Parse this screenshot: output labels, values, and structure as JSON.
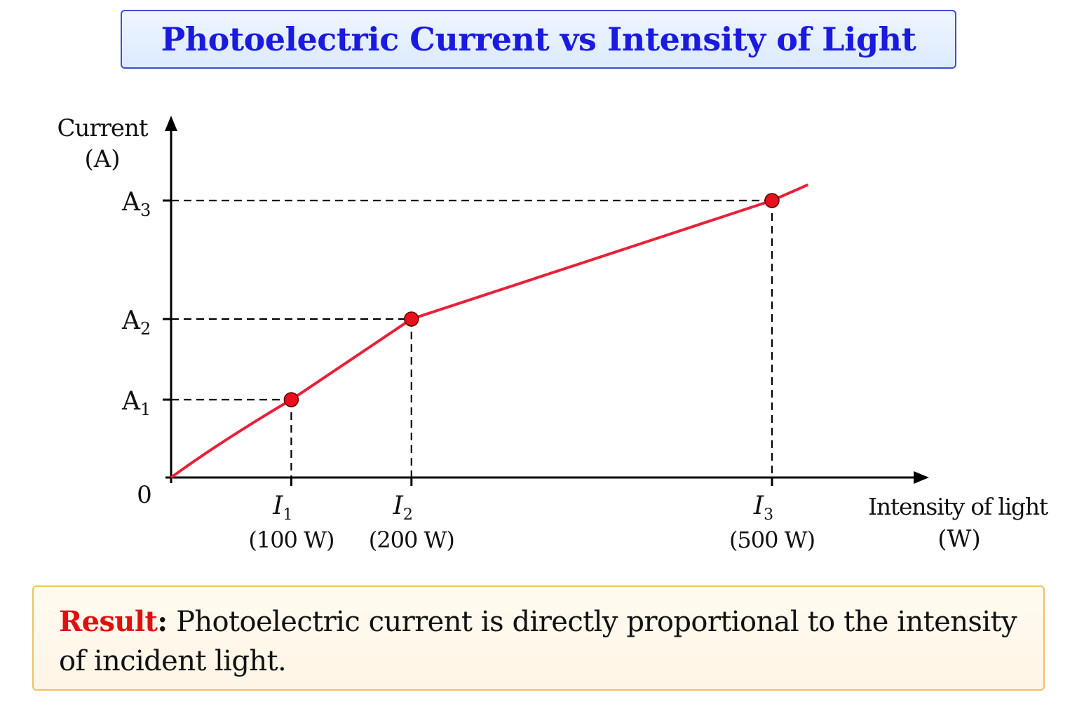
{
  "title": "Photoelectric Current vs Intensity of Light",
  "chart_data": {
    "type": "line",
    "y_axis_label_line1": "Current",
    "y_axis_label_line2": "(A)",
    "x_axis_label_line1": "Intensity of light",
    "x_axis_label_line2": "(W)",
    "origin_label": "0",
    "x": [
      0,
      100,
      200,
      500,
      530
    ],
    "y": [
      0,
      1,
      2,
      3.5,
      3.7
    ],
    "points": [
      {
        "x": 100,
        "y": 1.0,
        "x_label": "I",
        "x_sub": "1",
        "x_value_label": "(100 W)",
        "y_label": "A",
        "y_sub": "1"
      },
      {
        "x": 200,
        "y": 2.0,
        "x_label": "I",
        "x_sub": "2",
        "x_value_label": "(200 W)",
        "y_label": "A",
        "y_sub": "2"
      },
      {
        "x": 500,
        "y": 3.5,
        "x_label": "I",
        "x_sub": "3",
        "x_value_label": "(500 W)",
        "y_label": "A",
        "y_sub": "3"
      }
    ],
    "line_color": "#e8213a",
    "point_color": "#e8101a"
  },
  "result": {
    "label": "Result",
    "colon": ":",
    "text": " Photoelectric current is directly proportional to the intensity of incident light."
  }
}
